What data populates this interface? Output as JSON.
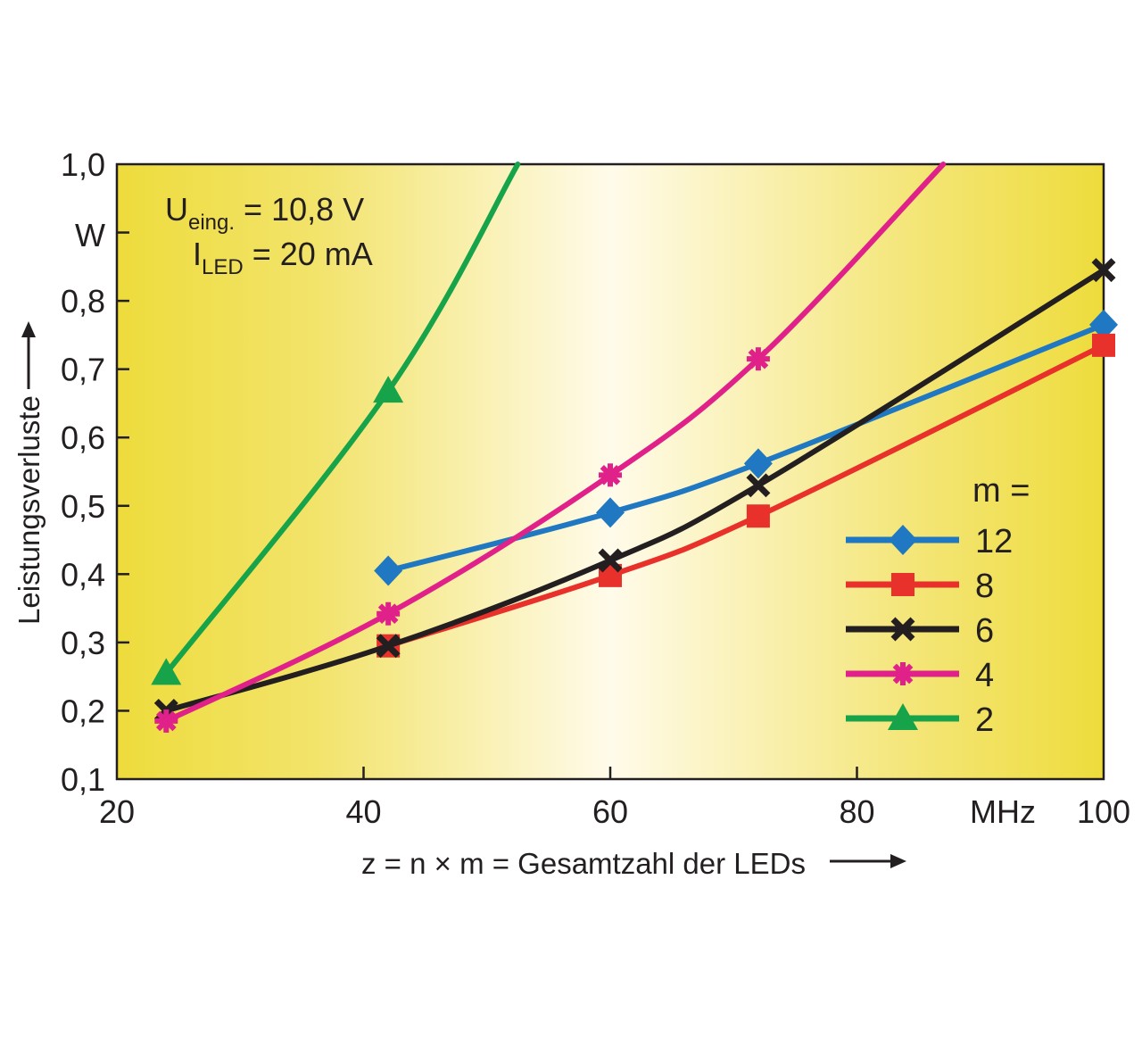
{
  "chart_data": {
    "type": "line",
    "xlabel": "z = n × m = Gesamtzahl der LEDs",
    "ylabel": "Leistungsverluste",
    "x_unit": "MHz",
    "y_unit": "W",
    "xlim": [
      20,
      100
    ],
    "ylim": [
      0.1,
      1.0
    ],
    "x_ticks": [
      "20",
      "40",
      "60",
      "80",
      "100"
    ],
    "y_ticks": [
      "0,1",
      "0,2",
      "0,3",
      "0,4",
      "0,5",
      "0,6",
      "0,7",
      "0,8",
      "1,0"
    ],
    "legend_title": "m =",
    "legend_position": "bottom-right",
    "annotation": {
      "line1_main": "U",
      "line1_sub": "eing.",
      "line1_rest": " = 10,8 V",
      "line2_main": "I",
      "line2_sub": "LED",
      "line2_rest": " = 20 mA"
    },
    "series": [
      {
        "name": "12",
        "color": "#1f78c1",
        "marker": "diamond",
        "points": [
          [
            42,
            0.405
          ],
          [
            60,
            0.49
          ],
          [
            72,
            0.562
          ],
          [
            100,
            0.765
          ]
        ]
      },
      {
        "name": "8",
        "color": "#e8312a",
        "marker": "square",
        "points": [
          [
            42,
            0.295
          ],
          [
            60,
            0.398
          ],
          [
            72,
            0.485
          ],
          [
            100,
            0.735
          ]
        ]
      },
      {
        "name": "6",
        "color": "#231f20",
        "marker": "x",
        "points": [
          [
            24,
            0.2
          ],
          [
            42,
            0.295
          ],
          [
            60,
            0.42
          ],
          [
            72,
            0.53
          ],
          [
            100,
            0.845
          ]
        ]
      },
      {
        "name": "4",
        "color": "#e0218a",
        "marker": "asterisk",
        "points": [
          [
            24,
            0.185
          ],
          [
            42,
            0.342
          ],
          [
            60,
            0.545
          ],
          [
            72,
            0.715
          ],
          [
            87,
            1.0
          ]
        ]
      },
      {
        "name": "2",
        "color": "#17a34a",
        "marker": "triangle",
        "points": [
          [
            24,
            0.255
          ],
          [
            42,
            0.668
          ],
          [
            52.5,
            1.0
          ]
        ]
      }
    ]
  }
}
